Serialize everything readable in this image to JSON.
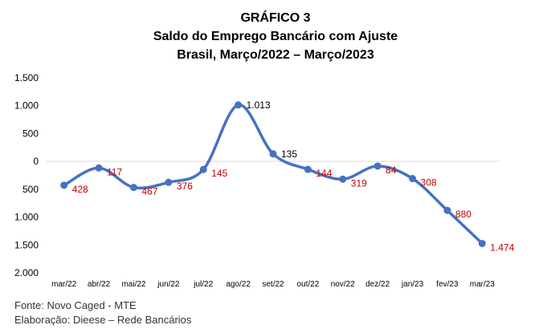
{
  "chart_data": {
    "type": "line",
    "title": "GRÁFICO 3",
    "subtitle": "Saldo do Emprego Bancário com Ajuste",
    "subtitle2": "Brasil, Março/2022 – Março/2023",
    "categories": [
      "mar/22",
      "abr/22",
      "mai/22",
      "jun/22",
      "jul/22",
      "ago/22",
      "set/22",
      "out/22",
      "nov/22",
      "dez/22",
      "jan/23",
      "fev/23",
      "mar/23"
    ],
    "series": [
      {
        "values": [
          -428,
          -117,
          -467,
          -376,
          -145,
          1013,
          135,
          -144,
          -319,
          -84,
          -308,
          -880,
          -1474
        ],
        "labels": [
          "428",
          "117",
          "467",
          "376",
          "145",
          "1.013",
          "135",
          "144",
          "319",
          "84",
          "308",
          "880",
          "1.474"
        ],
        "color": "#4472C4"
      }
    ],
    "ylim": [
      -2000,
      1500
    ],
    "yticks": [
      1500,
      1000,
      500,
      0,
      -500,
      -1000,
      -1500,
      -2000
    ],
    "ytick_labels": [
      "1.500",
      "1.000",
      "500",
      "0",
      "500",
      "1.000",
      "1.500",
      "2.000"
    ],
    "grid": false,
    "negative_label_color": "#C00000",
    "positive_label_color": "#000000"
  },
  "footer": {
    "source": "Fonte: Novo Caged - MTE",
    "credit": "Elaboração: Dieese – Rede Bancários"
  }
}
